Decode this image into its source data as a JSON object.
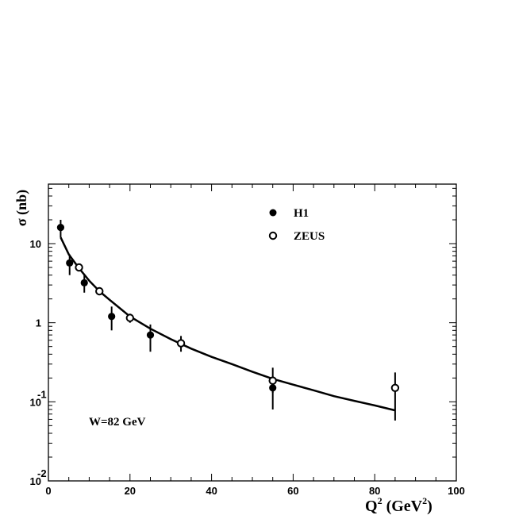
{
  "chart_data": {
    "type": "scatter",
    "ylabel": "σ (nb)",
    "xlabel": "Q² (GeV²)",
    "xlabel_parts": {
      "q": "Q",
      "q_exp": "2",
      "open": " (GeV",
      "gev_exp": "2",
      "close": ")"
    },
    "y_scale": "log",
    "xlim": [
      0,
      100
    ],
    "ylim": [
      0.01,
      50
    ],
    "x_ticks": [
      0,
      20,
      40,
      60,
      80,
      100
    ],
    "y_ticks": [
      {
        "value": 10,
        "base": "10",
        "exp": ""
      },
      {
        "value": 1,
        "base": "1",
        "exp": ""
      },
      {
        "value": 0.1,
        "base": "10",
        "exp": "-1"
      },
      {
        "value": 0.01,
        "base": "10",
        "exp": "-2"
      }
    ],
    "annotation": "W=82 GeV",
    "legend_position": "top-right",
    "series": [
      {
        "name": "H1",
        "marker": "filled-circle",
        "points": [
          {
            "x": 3,
            "y": 16,
            "ylo": 12,
            "yhi": 20
          },
          {
            "x": 5.2,
            "y": 5.7,
            "ylo": 4.0,
            "yhi": 7.3
          },
          {
            "x": 8.8,
            "y": 3.2,
            "ylo": 2.4,
            "yhi": 4.1
          },
          {
            "x": 15.5,
            "y": 1.2,
            "ylo": 0.8,
            "yhi": 1.6
          },
          {
            "x": 25,
            "y": 0.7,
            "ylo": 0.43,
            "yhi": 0.95
          },
          {
            "x": 55,
            "y": 0.15,
            "ylo": 0.08,
            "yhi": 0.21
          }
        ]
      },
      {
        "name": "ZEUS",
        "marker": "open-circle",
        "points": [
          {
            "x": 7.5,
            "y": 5.0,
            "ylo": 4.5,
            "yhi": 5.5
          },
          {
            "x": 12.5,
            "y": 2.5,
            "ylo": 2.3,
            "yhi": 2.7
          },
          {
            "x": 20,
            "y": 1.15,
            "ylo": 1.0,
            "yhi": 1.3
          },
          {
            "x": 32.5,
            "y": 0.55,
            "ylo": 0.43,
            "yhi": 0.68
          },
          {
            "x": 55,
            "y": 0.185,
            "ylo": 0.13,
            "yhi": 0.27
          },
          {
            "x": 85,
            "y": 0.15,
            "ylo": 0.058,
            "yhi": 0.235
          }
        ]
      }
    ],
    "fit_curve": {
      "points": [
        {
          "x": 3,
          "y": 12
        },
        {
          "x": 5,
          "y": 7.3
        },
        {
          "x": 7.5,
          "y": 4.9
        },
        {
          "x": 10,
          "y": 3.4
        },
        {
          "x": 12.5,
          "y": 2.5
        },
        {
          "x": 15,
          "y": 1.95
        },
        {
          "x": 20,
          "y": 1.2
        },
        {
          "x": 25,
          "y": 0.84
        },
        {
          "x": 30,
          "y": 0.62
        },
        {
          "x": 35,
          "y": 0.47
        },
        {
          "x": 40,
          "y": 0.37
        },
        {
          "x": 45,
          "y": 0.3
        },
        {
          "x": 50,
          "y": 0.24
        },
        {
          "x": 55,
          "y": 0.195
        },
        {
          "x": 60,
          "y": 0.165
        },
        {
          "x": 65,
          "y": 0.14
        },
        {
          "x": 70,
          "y": 0.118
        },
        {
          "x": 75,
          "y": 0.103
        },
        {
          "x": 80,
          "y": 0.09
        },
        {
          "x": 85,
          "y": 0.078
        }
      ]
    }
  }
}
